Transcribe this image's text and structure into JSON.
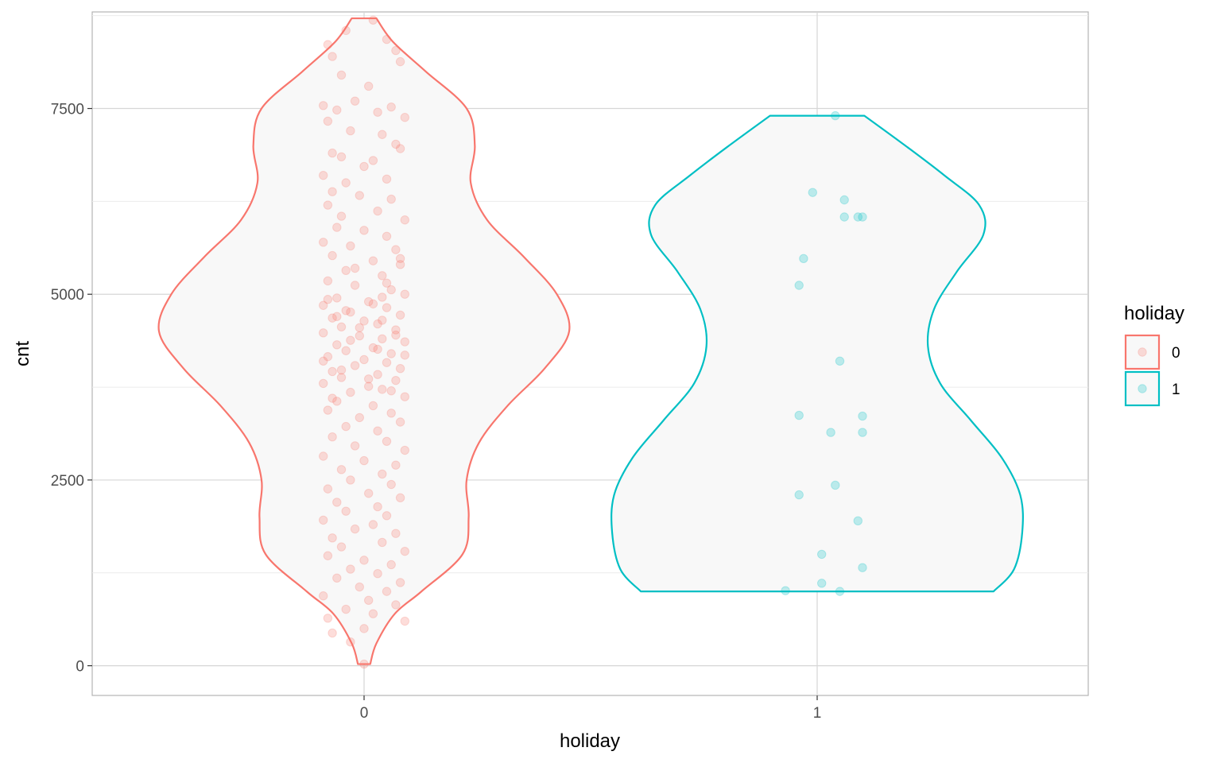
{
  "chart_data": {
    "type": "violin",
    "xlabel": "holiday",
    "ylabel": "cnt",
    "categories": [
      "0",
      "1"
    ],
    "ylim": [
      -400,
      8800
    ],
    "yticks": [
      0,
      2500,
      5000,
      7500
    ],
    "ytick_labels": [
      "0",
      "2500",
      "5000",
      "7500"
    ],
    "grid": true,
    "legend": {
      "title": "holiday",
      "position": "right",
      "entries": [
        {
          "label": "0",
          "color": "#F8766D"
        },
        {
          "label": "1",
          "color": "#00BFC4"
        }
      ]
    },
    "series": [
      {
        "name": "0",
        "color": "#F8766D",
        "y_range": [
          22,
          8714
        ],
        "density_halfwidth": [
          [
            22,
            0.03
          ],
          [
            300,
            0.06
          ],
          [
            700,
            0.15
          ],
          [
            1000,
            0.28
          ],
          [
            1500,
            0.48
          ],
          [
            2000,
            0.51
          ],
          [
            2500,
            0.5
          ],
          [
            3000,
            0.56
          ],
          [
            3500,
            0.7
          ],
          [
            4000,
            0.88
          ],
          [
            4500,
            1.0
          ],
          [
            5000,
            0.94
          ],
          [
            5500,
            0.78
          ],
          [
            6000,
            0.6
          ],
          [
            6500,
            0.52
          ],
          [
            7000,
            0.54
          ],
          [
            7500,
            0.5
          ],
          [
            8000,
            0.3
          ],
          [
            8400,
            0.14
          ],
          [
            8714,
            0.06
          ]
        ],
        "points": [
          [
            -0.08,
            8360
          ],
          [
            -0.07,
            8200
          ],
          [
            -0.04,
            8550
          ],
          [
            0.02,
            8690
          ],
          [
            0.05,
            8430
          ],
          [
            0.07,
            8280
          ],
          [
            -0.05,
            7950
          ],
          [
            0.08,
            8130
          ],
          [
            0.01,
            7800
          ],
          [
            -0.09,
            7540
          ],
          [
            -0.06,
            7480
          ],
          [
            -0.02,
            7600
          ],
          [
            0.03,
            7450
          ],
          [
            0.06,
            7520
          ],
          [
            0.09,
            7380
          ],
          [
            -0.08,
            7330
          ],
          [
            -0.03,
            7200
          ],
          [
            0.04,
            7150
          ],
          [
            0.07,
            7020
          ],
          [
            -0.07,
            6900
          ],
          [
            -0.05,
            6850
          ],
          [
            0.0,
            6720
          ],
          [
            0.02,
            6800
          ],
          [
            0.08,
            6960
          ],
          [
            -0.09,
            6600
          ],
          [
            -0.04,
            6500
          ],
          [
            0.05,
            6550
          ],
          [
            -0.07,
            6380
          ],
          [
            -0.01,
            6330
          ],
          [
            0.06,
            6280
          ],
          [
            -0.08,
            6200
          ],
          [
            -0.05,
            6050
          ],
          [
            0.03,
            6120
          ],
          [
            0.09,
            6000
          ],
          [
            -0.06,
            5900
          ],
          [
            0.0,
            5860
          ],
          [
            0.05,
            5780
          ],
          [
            -0.09,
            5700
          ],
          [
            -0.03,
            5650
          ],
          [
            0.07,
            5600
          ],
          [
            -0.07,
            5520
          ],
          [
            0.02,
            5450
          ],
          [
            0.08,
            5400
          ],
          [
            -0.04,
            5320
          ],
          [
            0.04,
            5250
          ],
          [
            -0.08,
            5180
          ],
          [
            -0.02,
            5120
          ],
          [
            0.06,
            5060
          ],
          [
            0.09,
            5000
          ],
          [
            -0.06,
            4950
          ],
          [
            0.01,
            4900
          ],
          [
            -0.09,
            4850
          ],
          [
            0.05,
            4820
          ],
          [
            -0.03,
            4760
          ],
          [
            0.08,
            4720
          ],
          [
            -0.07,
            4680
          ],
          [
            0.0,
            4640
          ],
          [
            0.03,
            4600
          ],
          [
            -0.05,
            4560
          ],
          [
            0.07,
            4520
          ],
          [
            -0.09,
            4480
          ],
          [
            -0.01,
            4440
          ],
          [
            0.04,
            4400
          ],
          [
            0.09,
            4360
          ],
          [
            -0.06,
            4320
          ],
          [
            0.02,
            4280
          ],
          [
            -0.04,
            4240
          ],
          [
            0.06,
            4200
          ],
          [
            -0.08,
            4160
          ],
          [
            0.0,
            4120
          ],
          [
            0.05,
            4080
          ],
          [
            -0.02,
            4040
          ],
          [
            0.08,
            4000
          ],
          [
            -0.07,
            3960
          ],
          [
            0.03,
            3920
          ],
          [
            -0.05,
            3880
          ],
          [
            0.07,
            3840
          ],
          [
            -0.09,
            3800
          ],
          [
            0.01,
            3760
          ],
          [
            0.04,
            3720
          ],
          [
            -0.03,
            3680
          ],
          [
            0.09,
            3620
          ],
          [
            -0.06,
            3560
          ],
          [
            0.02,
            3500
          ],
          [
            -0.08,
            3440
          ],
          [
            0.06,
            3400
          ],
          [
            -0.01,
            3340
          ],
          [
            0.08,
            3280
          ],
          [
            -0.04,
            3220
          ],
          [
            0.03,
            3160
          ],
          [
            -0.07,
            3080
          ],
          [
            0.05,
            3020
          ],
          [
            -0.02,
            2960
          ],
          [
            0.09,
            2900
          ],
          [
            -0.09,
            2820
          ],
          [
            0.0,
            2760
          ],
          [
            0.07,
            2700
          ],
          [
            -0.05,
            2640
          ],
          [
            0.04,
            2580
          ],
          [
            -0.03,
            2500
          ],
          [
            0.06,
            2440
          ],
          [
            -0.08,
            2380
          ],
          [
            0.01,
            2320
          ],
          [
            0.08,
            2260
          ],
          [
            -0.06,
            2200
          ],
          [
            0.03,
            2140
          ],
          [
            -0.04,
            2080
          ],
          [
            0.05,
            2020
          ],
          [
            -0.09,
            1960
          ],
          [
            0.02,
            1900
          ],
          [
            -0.02,
            1840
          ],
          [
            0.07,
            1780
          ],
          [
            -0.07,
            1720
          ],
          [
            0.04,
            1660
          ],
          [
            -0.05,
            1600
          ],
          [
            0.09,
            1540
          ],
          [
            -0.08,
            1480
          ],
          [
            0.0,
            1420
          ],
          [
            0.06,
            1360
          ],
          [
            -0.03,
            1300
          ],
          [
            0.03,
            1240
          ],
          [
            -0.06,
            1180
          ],
          [
            0.08,
            1120
          ],
          [
            -0.01,
            1060
          ],
          [
            0.05,
            1000
          ],
          [
            -0.09,
            940
          ],
          [
            0.01,
            880
          ],
          [
            0.07,
            820
          ],
          [
            -0.04,
            760
          ],
          [
            0.02,
            700
          ],
          [
            -0.08,
            640
          ],
          [
            0.09,
            600
          ],
          [
            -0.07,
            440
          ],
          [
            0.0,
            500
          ],
          [
            -0.03,
            320
          ],
          [
            0.0,
            22
          ],
          [
            -0.06,
            4700
          ],
          [
            0.04,
            4650
          ],
          [
            -0.01,
            4550
          ],
          [
            0.07,
            4450
          ],
          [
            -0.04,
            4780
          ],
          [
            0.02,
            4870
          ],
          [
            -0.08,
            4930
          ],
          [
            0.05,
            5150
          ],
          [
            -0.02,
            5350
          ],
          [
            0.08,
            5480
          ],
          [
            -0.05,
            3980
          ],
          [
            0.01,
            3860
          ],
          [
            0.06,
            3700
          ],
          [
            -0.07,
            3600
          ],
          [
            0.03,
            4260
          ],
          [
            -0.09,
            4100
          ],
          [
            0.09,
            4180
          ],
          [
            -0.03,
            4380
          ],
          [
            0.04,
            4960
          ]
        ]
      },
      {
        "name": "1",
        "color": "#00BFC4",
        "y_range": [
          1000,
          7403
        ],
        "density_halfwidth": [
          [
            1000,
            0.86
          ],
          [
            1300,
            0.96
          ],
          [
            1800,
            1.0
          ],
          [
            2300,
            0.99
          ],
          [
            2800,
            0.9
          ],
          [
            3300,
            0.75
          ],
          [
            3800,
            0.6
          ],
          [
            4300,
            0.54
          ],
          [
            4800,
            0.57
          ],
          [
            5300,
            0.68
          ],
          [
            5800,
            0.81
          ],
          [
            6200,
            0.79
          ],
          [
            6600,
            0.62
          ],
          [
            7000,
            0.43
          ],
          [
            7403,
            0.23
          ]
        ],
        "points": [
          [
            0.04,
            7403
          ],
          [
            -0.01,
            6370
          ],
          [
            0.06,
            6270
          ],
          [
            0.06,
            6040
          ],
          [
            0.09,
            6040
          ],
          [
            0.1,
            6040
          ],
          [
            -0.03,
            5480
          ],
          [
            -0.04,
            5120
          ],
          [
            0.05,
            4100
          ],
          [
            -0.04,
            3370
          ],
          [
            0.1,
            3360
          ],
          [
            0.03,
            3140
          ],
          [
            0.1,
            3140
          ],
          [
            0.04,
            2430
          ],
          [
            -0.04,
            2300
          ],
          [
            0.09,
            1950
          ],
          [
            0.01,
            1500
          ],
          [
            0.1,
            1320
          ],
          [
            0.01,
            1110
          ],
          [
            -0.07,
            1010
          ],
          [
            0.05,
            1000
          ]
        ]
      }
    ]
  }
}
